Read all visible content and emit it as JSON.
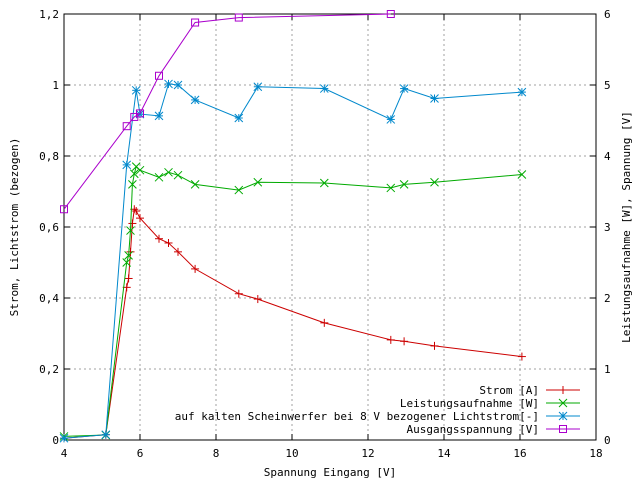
{
  "chart_data": {
    "type": "line",
    "title": "",
    "xlabel": "Spannung Eingang [V]",
    "ylabel": "Strom, Lichtstrom (bezogen)",
    "y2label": "Leistungsaufnahme [W], Spannung [V]",
    "xlim": [
      4,
      18
    ],
    "ylim": [
      0,
      1.2
    ],
    "y2lim": [
      0,
      6
    ],
    "xticks": [
      "4",
      "6",
      "8",
      "10",
      "12",
      "14",
      "16",
      "18"
    ],
    "yticks": [
      "0",
      "0,2",
      "0,4",
      "0,6",
      "0,8",
      "1",
      "1,2"
    ],
    "y2ticks": [
      "0",
      "1",
      "2",
      "3",
      "4",
      "5",
      "6"
    ],
    "grid": true,
    "legend_position": "bottom-right",
    "series": [
      {
        "name": "Strom [A]",
        "axis": "left",
        "color": "#cc0000",
        "marker": "plus",
        "x": [
          4.0,
          5.1,
          5.65,
          5.7,
          5.75,
          5.8,
          5.85,
          5.9,
          6.0,
          6.5,
          6.75,
          7.0,
          7.45,
          8.6,
          9.1,
          10.85,
          12.6,
          12.95,
          13.75,
          16.05
        ],
        "y": [
          0.005,
          0.015,
          0.43,
          0.455,
          0.53,
          0.61,
          0.65,
          0.645,
          0.625,
          0.567,
          0.555,
          0.53,
          0.482,
          0.412,
          0.397,
          0.33,
          0.282,
          0.278,
          0.265,
          0.235
        ]
      },
      {
        "name": "Leistungsaufnahme [W]",
        "axis": "right",
        "color": "#00aa00",
        "marker": "x",
        "x": [
          4.0,
          5.1,
          5.65,
          5.7,
          5.75,
          5.8,
          5.85,
          5.9,
          6.0,
          6.5,
          6.75,
          7.0,
          7.45,
          8.6,
          9.1,
          10.85,
          12.6,
          12.95,
          13.75,
          16.05
        ],
        "y": [
          0.05,
          0.07,
          2.5,
          2.6,
          2.95,
          3.6,
          3.75,
          3.85,
          3.8,
          3.7,
          3.77,
          3.73,
          3.6,
          3.52,
          3.63,
          3.62,
          3.55,
          3.6,
          3.63,
          3.74
        ]
      },
      {
        "name": "auf kalten Scheinwerfer bei 8 V bezogener Lichtstrom[-]",
        "axis": "left",
        "color": "#0088cc",
        "marker": "star",
        "x": [
          4.0,
          5.1,
          5.65,
          5.9,
          6.0,
          6.5,
          6.75,
          7.0,
          7.45,
          8.6,
          9.1,
          10.85,
          12.6,
          12.95,
          13.75,
          16.05
        ],
        "y": [
          0.005,
          0.015,
          0.775,
          0.985,
          0.918,
          0.913,
          1.003,
          1.0,
          0.958,
          0.907,
          0.995,
          0.99,
          0.903,
          0.99,
          0.962,
          0.98
        ]
      },
      {
        "name": "Ausgangsspannung [V]",
        "axis": "right",
        "color": "#aa00cc",
        "marker": "square",
        "x": [
          4.0,
          5.65,
          5.85,
          6.0,
          6.5,
          7.45,
          8.6,
          12.6
        ],
        "y": [
          3.25,
          4.42,
          4.55,
          4.6,
          5.13,
          5.88,
          5.95,
          6.0
        ]
      }
    ]
  }
}
